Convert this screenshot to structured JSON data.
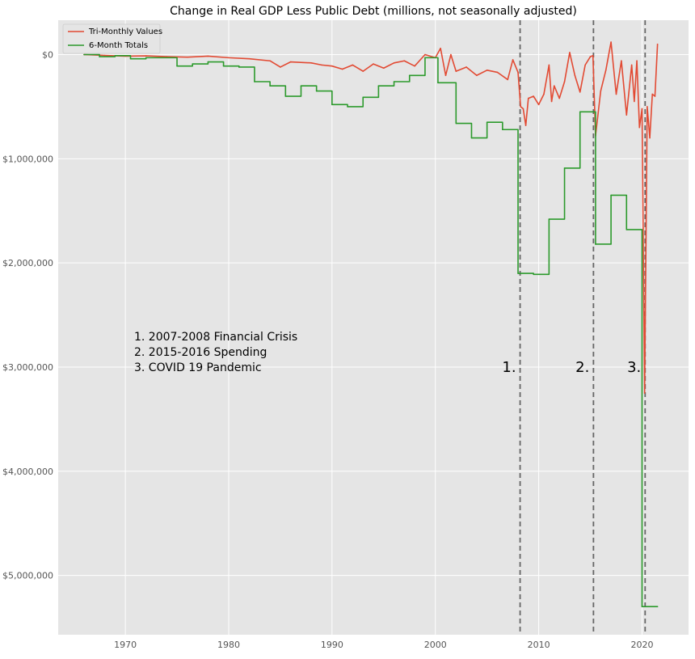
{
  "chart_data": {
    "type": "line",
    "title": "Change in Real GDP Less Public Debt (millions, not seasonally adjusted)",
    "xlabel": "",
    "ylabel": "",
    "xlim": [
      1963.5,
      2024.5
    ],
    "ylim": [
      -5570000,
      330000
    ],
    "x_ticks": [
      1970,
      1980,
      1990,
      2000,
      2010,
      2020
    ],
    "x_tick_labels": [
      "1970",
      "1980",
      "1990",
      "2000",
      "2010",
      "2020"
    ],
    "y_ticks": [
      0,
      -1000000,
      -2000000,
      -3000000,
      -4000000,
      -5000000
    ],
    "y_tick_labels": [
      "$0",
      "$1,000,000",
      "$2,000,000",
      "$3,000,000",
      "$4,000,000",
      "$5,000,000"
    ],
    "grid": true,
    "legend_position": "top-left",
    "background_color": "#e5e5e5",
    "series": [
      {
        "name": "Tri-Monthly Values",
        "style": "line",
        "color": "#e24a33",
        "x": [
          1966.0,
          1968.0,
          1970.0,
          1972.0,
          1974.0,
          1976.0,
          1978.0,
          1980.0,
          1982.0,
          1984.0,
          1985.0,
          1986.0,
          1988.0,
          1989.0,
          1990.0,
          1991.0,
          1992.0,
          1993.0,
          1994.0,
          1995.0,
          1996.0,
          1997.0,
          1998.0,
          1999.0,
          2000.0,
          2000.5,
          2001.0,
          2001.5,
          2002.0,
          2003.0,
          2004.0,
          2005.0,
          2006.0,
          2007.0,
          2007.5,
          2008.0,
          2008.25,
          2008.5,
          2008.75,
          2009.0,
          2009.5,
          2010.0,
          2010.5,
          2011.0,
          2011.25,
          2011.5,
          2012.0,
          2012.5,
          2013.0,
          2013.5,
          2014.0,
          2014.5,
          2015.0,
          2015.25,
          2015.5,
          2016.0,
          2016.5,
          2017.0,
          2017.5,
          2018.0,
          2018.5,
          2019.0,
          2019.25,
          2019.5,
          2019.75,
          2020.0,
          2020.25,
          2020.5,
          2020.75,
          2021.0,
          2021.25,
          2021.5
        ],
        "values": [
          0,
          -8000,
          -15000,
          -12000,
          -20000,
          -25000,
          -15000,
          -30000,
          -40000,
          -60000,
          -120000,
          -70000,
          -80000,
          -100000,
          -110000,
          -140000,
          -100000,
          -160000,
          -90000,
          -130000,
          -80000,
          -60000,
          -110000,
          0,
          -30000,
          60000,
          -200000,
          0,
          -160000,
          -120000,
          -200000,
          -150000,
          -170000,
          -240000,
          -50000,
          -170000,
          -500000,
          -520000,
          -680000,
          -420000,
          -400000,
          -480000,
          -380000,
          -100000,
          -450000,
          -300000,
          -420000,
          -260000,
          20000,
          -200000,
          -360000,
          -100000,
          -20000,
          -10000,
          -780000,
          -350000,
          -150000,
          120000,
          -380000,
          -60000,
          -580000,
          -100000,
          -450000,
          -60000,
          -700000,
          -520000,
          -3250000,
          -500000,
          -800000,
          -380000,
          -400000,
          100000
        ]
      },
      {
        "name": "6-Month Totals",
        "style": "step",
        "color": "#2c9a2c",
        "x": [
          1966.0,
          1967.5,
          1969.0,
          1970.5,
          1972.0,
          1975.0,
          1976.5,
          1978.0,
          1979.5,
          1981.0,
          1982.5,
          1984.0,
          1985.5,
          1987.0,
          1988.5,
          1990.0,
          1991.5,
          1993.0,
          1994.5,
          1996.0,
          1997.5,
          1999.0,
          2000.25,
          2002.0,
          2003.5,
          2005.0,
          2006.5,
          2008.0,
          2009.5,
          2011.0,
          2012.5,
          2014.0,
          2015.5,
          2017.0,
          2018.5,
          2020.0,
          2021.5
        ],
        "values": [
          0,
          -20000,
          -10000,
          -40000,
          -30000,
          -110000,
          -90000,
          -70000,
          -110000,
          -120000,
          -260000,
          -300000,
          -400000,
          -300000,
          -350000,
          -480000,
          -500000,
          -410000,
          -300000,
          -260000,
          -200000,
          -30000,
          -270000,
          -660000,
          -800000,
          -650000,
          -720000,
          -2100000,
          -2110000,
          -1580000,
          -1090000,
          -550000,
          -1820000,
          -1350000,
          -1680000,
          -5300000,
          -5300000
        ]
      }
    ],
    "vertical_lines": [
      {
        "x": 2008.2,
        "label": "1.",
        "color": "#666666"
      },
      {
        "x": 2015.3,
        "label": "2.",
        "color": "#666666"
      },
      {
        "x": 2020.3,
        "label": "3.",
        "color": "#666666"
      }
    ],
    "annotations": [
      "1. 2007-2008 Financial Crisis",
      "2. 2015-2016 Spending",
      "3. COVID 19 Pandemic"
    ]
  }
}
